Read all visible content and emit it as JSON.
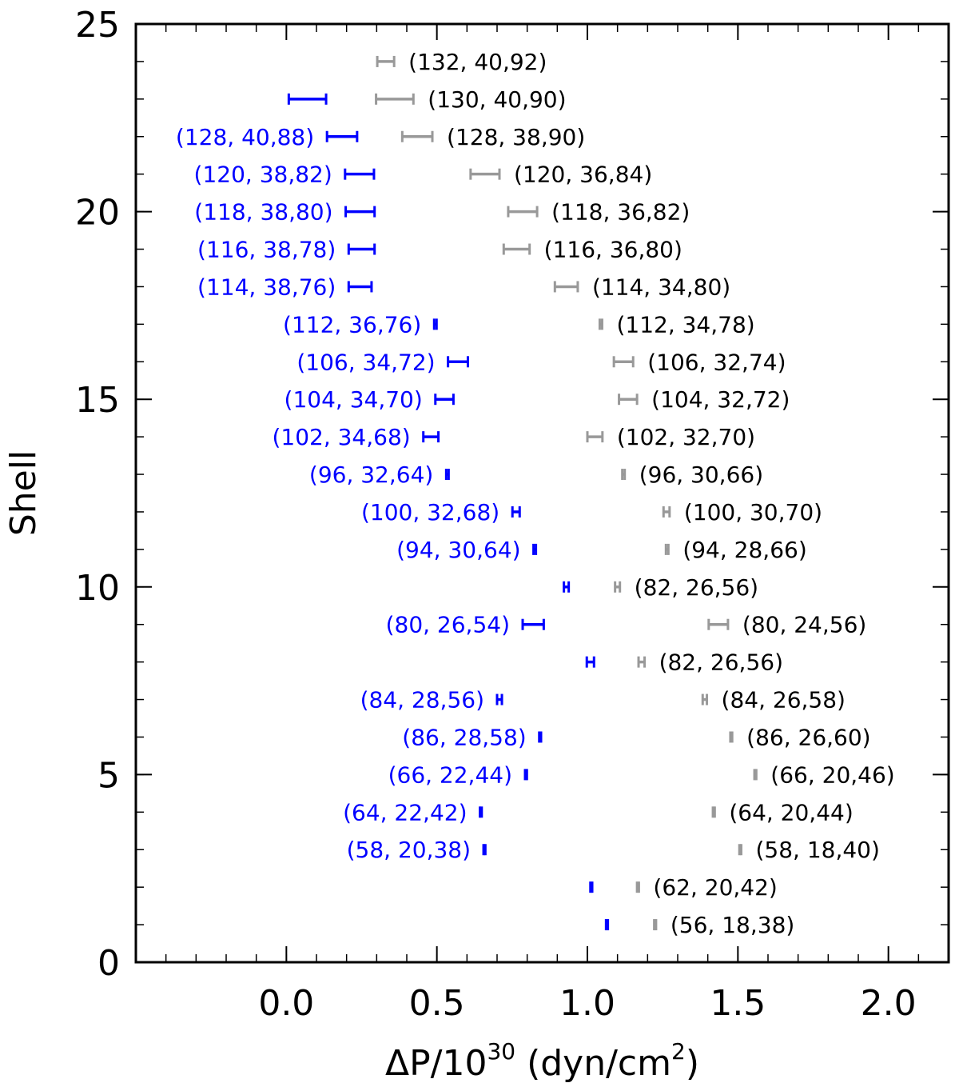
{
  "chart_data": {
    "type": "scatter",
    "title": "",
    "xlabel": "ΔP/10",
    "xlabel_exponent": "30",
    "xlabel_units_open": " (dyn/cm",
    "xlabel_units_exponent": "2",
    "xlabel_units_close": ")",
    "ylabel": "Shell",
    "xlim": [
      -0.5,
      2.2
    ],
    "ylim": [
      0,
      25
    ],
    "x_ticks": [
      0.0,
      0.5,
      1.0,
      1.5,
      2.0
    ],
    "x_tick_labels": [
      "0.0",
      "0.5",
      "1.0",
      "1.5",
      "2.0"
    ],
    "y_ticks": [
      0,
      5,
      10,
      15,
      20,
      25
    ],
    "y_tick_labels": [
      "0",
      "5",
      "10",
      "15",
      "20",
      "25"
    ],
    "x_minor_step": 0.1,
    "y_minor_step": 1,
    "grid": false,
    "series": [
      {
        "color": "#0000ff",
        "points": [
          {
            "shell": 1,
            "x": 1.065,
            "xerr": 0.003,
            "label": ""
          },
          {
            "shell": 2,
            "x": 1.013,
            "xerr": 0.003,
            "label": ""
          },
          {
            "shell": 3,
            "x": 0.658,
            "xerr": 0.003,
            "label": "(58, 20,38)"
          },
          {
            "shell": 4,
            "x": 0.646,
            "xerr": 0.003,
            "label": "(64, 22,42)"
          },
          {
            "shell": 5,
            "x": 0.796,
            "xerr": 0.003,
            "label": "(66, 22,44)"
          },
          {
            "shell": 6,
            "x": 0.843,
            "xerr": 0.003,
            "label": "(86, 28,58)"
          },
          {
            "shell": 7,
            "x": 0.708,
            "xerr": 0.008,
            "label": "(84, 28,56)"
          },
          {
            "shell": 8,
            "x": 1.01,
            "xerr": 0.012,
            "label": ""
          },
          {
            "shell": 9,
            "x": 0.82,
            "xerr": 0.035,
            "label": "(80, 26,54)"
          },
          {
            "shell": 10,
            "x": 0.93,
            "xerr": 0.008,
            "label": ""
          },
          {
            "shell": 11,
            "x": 0.825,
            "xerr": 0.004,
            "label": "(94, 30,64)"
          },
          {
            "shell": 12,
            "x": 0.763,
            "xerr": 0.012,
            "label": "(100, 32,68)"
          },
          {
            "shell": 13,
            "x": 0.535,
            "xerr": 0.004,
            "label": "(96, 32,64)"
          },
          {
            "shell": 14,
            "x": 0.48,
            "xerr": 0.025,
            "label": "(102, 34,68)"
          },
          {
            "shell": 15,
            "x": 0.525,
            "xerr": 0.03,
            "label": "(104, 34,70)"
          },
          {
            "shell": 16,
            "x": 0.57,
            "xerr": 0.033,
            "label": "(106, 34,72)"
          },
          {
            "shell": 17,
            "x": 0.495,
            "xerr": 0.004,
            "label": "(112, 36,76)"
          },
          {
            "shell": 18,
            "x": 0.245,
            "xerr": 0.038,
            "label": "(114, 38,76)"
          },
          {
            "shell": 19,
            "x": 0.25,
            "xerr": 0.043,
            "label": "(116, 38,78)"
          },
          {
            "shell": 20,
            "x": 0.245,
            "xerr": 0.048,
            "label": "(118, 38,80)"
          },
          {
            "shell": 21,
            "x": 0.243,
            "xerr": 0.048,
            "label": "(120, 38,82)"
          },
          {
            "shell": 22,
            "x": 0.185,
            "xerr": 0.05,
            "label": "(128, 40,88)"
          },
          {
            "shell": 23,
            "x": 0.07,
            "xerr": 0.062,
            "label": ""
          }
        ]
      },
      {
        "color": "#999999",
        "points": [
          {
            "shell": 1,
            "x": 1.225,
            "xerr": 0.003,
            "label": "(56, 18,38)"
          },
          {
            "shell": 2,
            "x": 1.168,
            "xerr": 0.003,
            "label": "(62, 20,42)"
          },
          {
            "shell": 3,
            "x": 1.508,
            "xerr": 0.003,
            "label": "(58, 18,40)"
          },
          {
            "shell": 4,
            "x": 1.42,
            "xerr": 0.003,
            "label": "(64, 20,44)"
          },
          {
            "shell": 5,
            "x": 1.558,
            "xerr": 0.003,
            "label": "(66, 20,46)"
          },
          {
            "shell": 6,
            "x": 1.478,
            "xerr": 0.003,
            "label": "(86, 26,60)"
          },
          {
            "shell": 7,
            "x": 1.39,
            "xerr": 0.007,
            "label": "(84, 26,58)"
          },
          {
            "shell": 8,
            "x": 1.18,
            "xerr": 0.01,
            "label": "(82, 26,56)"
          },
          {
            "shell": 9,
            "x": 1.435,
            "xerr": 0.032,
            "label": "(80, 24,56)"
          },
          {
            "shell": 10,
            "x": 1.1,
            "xerr": 0.008,
            "label": "(82, 26,56)"
          },
          {
            "shell": 11,
            "x": 1.265,
            "xerr": 0.004,
            "label": "(94, 28,66)"
          },
          {
            "shell": 12,
            "x": 1.263,
            "xerr": 0.01,
            "label": "(100, 30,70)"
          },
          {
            "shell": 13,
            "x": 1.12,
            "xerr": 0.004,
            "label": "(96, 30,66)"
          },
          {
            "shell": 14,
            "x": 1.025,
            "xerr": 0.025,
            "label": "(102, 32,70)"
          },
          {
            "shell": 15,
            "x": 1.135,
            "xerr": 0.03,
            "label": "(104, 32,72)"
          },
          {
            "shell": 16,
            "x": 1.12,
            "xerr": 0.032,
            "label": "(106, 32,74)"
          },
          {
            "shell": 17,
            "x": 1.045,
            "xerr": 0.004,
            "label": "(112, 34,78)"
          },
          {
            "shell": 18,
            "x": 0.93,
            "xerr": 0.038,
            "label": "(114, 34,80)"
          },
          {
            "shell": 19,
            "x": 0.765,
            "xerr": 0.043,
            "label": "(116, 36,80)"
          },
          {
            "shell": 20,
            "x": 0.785,
            "xerr": 0.048,
            "label": "(118, 36,82)"
          },
          {
            "shell": 21,
            "x": 0.66,
            "xerr": 0.048,
            "label": "(120, 36,84)"
          },
          {
            "shell": 22,
            "x": 0.435,
            "xerr": 0.05,
            "label": "(128, 38,90)"
          },
          {
            "shell": 23,
            "x": 0.36,
            "xerr": 0.062,
            "label": "(130, 40,90)"
          },
          {
            "shell": 24,
            "x": 0.33,
            "xerr": 0.028,
            "label": "(132, 40,92)"
          }
        ]
      }
    ]
  }
}
